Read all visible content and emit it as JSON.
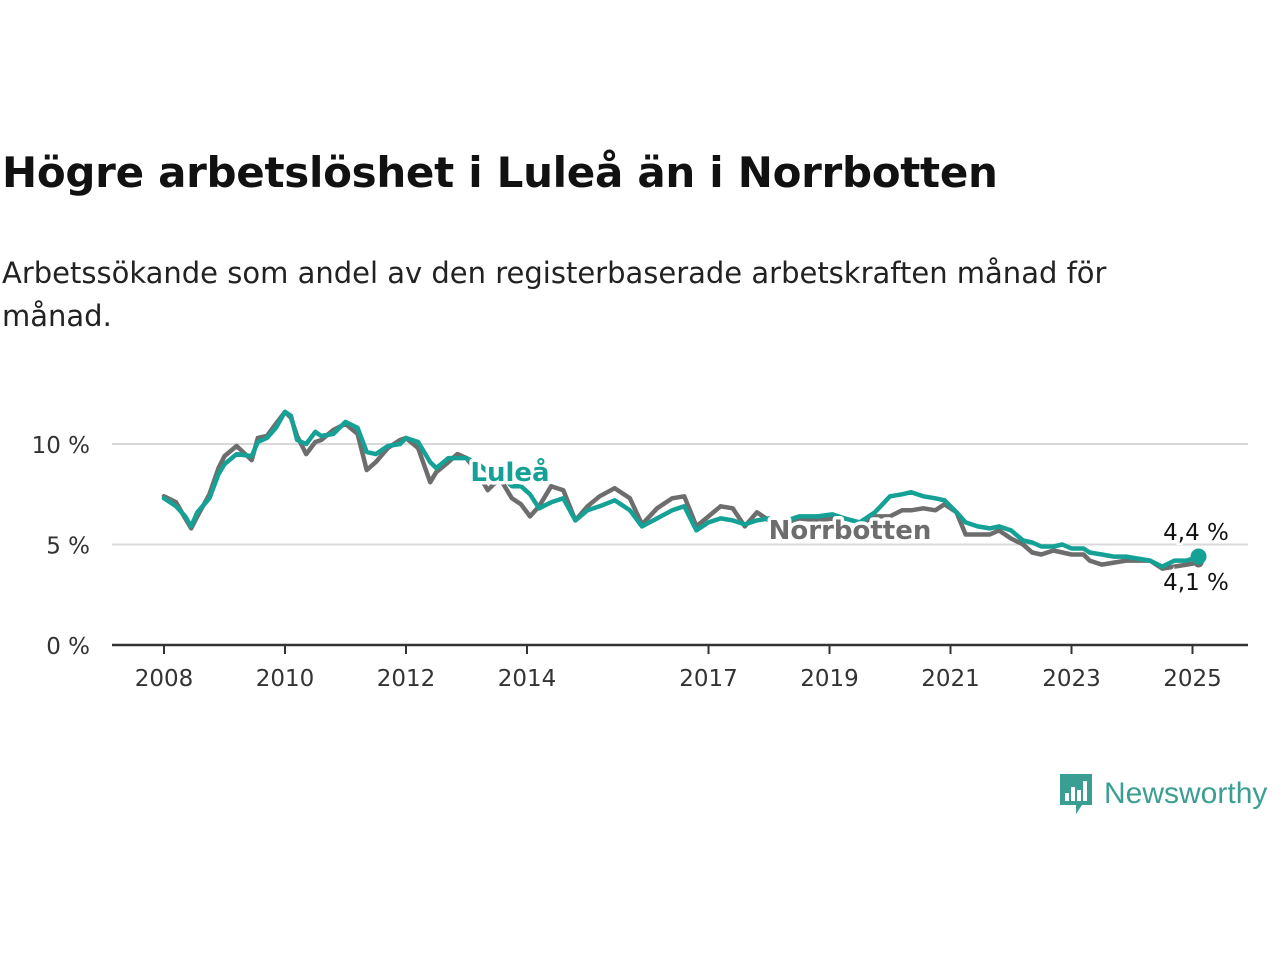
{
  "title": "Högre arbetslöshet i Luleå än i Norrbotten",
  "subtitle": "Arbetssökande som andel av den registerbaserade arbetskraften månad för månad.",
  "brand": {
    "name": "Newsworthy",
    "icon": "newsworthy-logo-icon",
    "color": "#3a9e92"
  },
  "chart_data": {
    "type": "line",
    "title": "Högre arbetslöshet i Luleå än i Norrbotten",
    "subtitle": "Arbetssökande som andel av den registerbaserade arbetskraften månad för månad.",
    "xlabel": "",
    "ylabel": "",
    "x_ticks": [
      "2008",
      "2010",
      "2012",
      "2014",
      "2017",
      "2019",
      "2021",
      "2023",
      "2025"
    ],
    "y_ticks": [
      "0 %",
      "5 %",
      "10 %"
    ],
    "ylim": [
      0,
      12
    ],
    "grid": true,
    "legend": "inline labels on lines",
    "series": [
      {
        "name": "Norrbotten",
        "color": "#6d6d6d",
        "end_label": "4,1 %",
        "x": [
          2008.0,
          2008.2,
          2008.35,
          2008.45,
          2008.55,
          2008.75,
          2008.9,
          2009.0,
          2009.2,
          2009.45,
          2009.55,
          2009.7,
          2009.85,
          2010.0,
          2010.1,
          2010.2,
          2010.35,
          2010.5,
          2010.6,
          2010.8,
          2011.0,
          2011.2,
          2011.35,
          2011.5,
          2011.7,
          2011.9,
          2012.0,
          2012.2,
          2012.4,
          2012.5,
          2012.7,
          2012.85,
          2013.0,
          2013.2,
          2013.35,
          2013.55,
          2013.75,
          2013.9,
          2014.05,
          2014.2,
          2014.4,
          2014.6,
          2014.8,
          2015.0,
          2015.2,
          2015.45,
          2015.7,
          2015.9,
          2016.15,
          2016.4,
          2016.6,
          2016.8,
          2017.0,
          2017.2,
          2017.4,
          2017.6,
          2017.8,
          2018.0,
          2018.2,
          2018.5,
          2018.8,
          2019.05,
          2019.25,
          2019.5,
          2019.75,
          2020.0,
          2020.2,
          2020.35,
          2020.55,
          2020.75,
          2020.9,
          2021.1,
          2021.25,
          2021.45,
          2021.65,
          2021.8,
          2022.0,
          2022.2,
          2022.35,
          2022.5,
          2022.7,
          2022.85,
          2023.0,
          2023.2,
          2023.3,
          2023.5,
          2023.7,
          2023.9,
          2024.1,
          2024.3,
          2024.5,
          2024.7,
          2024.9,
          2025.1
        ],
        "values": [
          7.4,
          7.1,
          6.3,
          5.8,
          6.4,
          7.5,
          8.8,
          9.4,
          9.9,
          9.2,
          10.3,
          10.4,
          11.0,
          11.6,
          11.3,
          10.4,
          9.5,
          10.1,
          10.2,
          10.7,
          11.0,
          10.5,
          8.7,
          9.1,
          9.8,
          10.2,
          10.3,
          9.8,
          8.1,
          8.6,
          9.1,
          9.5,
          9.3,
          8.5,
          7.7,
          8.3,
          7.3,
          7.0,
          6.4,
          6.9,
          7.9,
          7.7,
          6.2,
          6.9,
          7.4,
          7.8,
          7.3,
          6.0,
          6.8,
          7.3,
          7.4,
          5.9,
          6.4,
          6.9,
          6.8,
          5.9,
          6.6,
          6.2,
          6.0,
          6.3,
          6.2,
          6.3,
          5.8,
          5.9,
          6.4,
          6.4,
          6.7,
          6.7,
          6.8,
          6.7,
          7.0,
          6.6,
          5.5,
          5.5,
          5.5,
          5.7,
          5.3,
          5.0,
          4.6,
          4.5,
          4.7,
          4.6,
          4.5,
          4.5,
          4.2,
          4.0,
          4.1,
          4.2,
          4.2,
          4.2,
          3.8,
          3.9,
          4.0,
          4.1
        ]
      },
      {
        "name": "Luleå",
        "color": "#15a195",
        "end_label": "4,4 %",
        "x": [
          2008.0,
          2008.2,
          2008.35,
          2008.45,
          2008.55,
          2008.75,
          2008.9,
          2009.0,
          2009.2,
          2009.45,
          2009.55,
          2009.7,
          2009.85,
          2010.0,
          2010.1,
          2010.2,
          2010.35,
          2010.5,
          2010.6,
          2010.8,
          2011.0,
          2011.2,
          2011.35,
          2011.5,
          2011.7,
          2011.9,
          2012.0,
          2012.2,
          2012.4,
          2012.5,
          2012.7,
          2012.85,
          2013.0,
          2013.2,
          2013.35,
          2013.55,
          2013.75,
          2013.9,
          2014.05,
          2014.2,
          2014.4,
          2014.6,
          2014.8,
          2015.0,
          2015.2,
          2015.45,
          2015.7,
          2015.9,
          2016.15,
          2016.4,
          2016.6,
          2016.8,
          2017.0,
          2017.2,
          2017.4,
          2017.6,
          2017.8,
          2018.0,
          2018.2,
          2018.5,
          2018.8,
          2019.05,
          2019.25,
          2019.5,
          2019.75,
          2020.0,
          2020.2,
          2020.35,
          2020.55,
          2020.75,
          2020.9,
          2021.1,
          2021.25,
          2021.45,
          2021.65,
          2021.8,
          2022.0,
          2022.2,
          2022.35,
          2022.5,
          2022.7,
          2022.85,
          2023.0,
          2023.2,
          2023.3,
          2023.5,
          2023.7,
          2023.9,
          2024.1,
          2024.3,
          2024.5,
          2024.7,
          2024.9,
          2025.1
        ],
        "values": [
          7.3,
          6.9,
          6.4,
          5.9,
          6.6,
          7.3,
          8.5,
          9.0,
          9.5,
          9.4,
          10.1,
          10.3,
          10.8,
          11.6,
          11.4,
          10.2,
          10.0,
          10.6,
          10.4,
          10.5,
          11.1,
          10.8,
          9.6,
          9.5,
          9.9,
          10.0,
          10.3,
          10.1,
          9.1,
          8.8,
          9.3,
          9.3,
          9.3,
          9.0,
          8.6,
          8.5,
          7.9,
          7.9,
          7.5,
          6.8,
          7.1,
          7.3,
          6.2,
          6.7,
          6.9,
          7.2,
          6.7,
          5.9,
          6.3,
          6.7,
          6.9,
          5.7,
          6.1,
          6.3,
          6.2,
          6.0,
          6.2,
          6.3,
          6.1,
          6.4,
          6.4,
          6.5,
          6.3,
          6.1,
          6.6,
          7.4,
          7.5,
          7.6,
          7.4,
          7.3,
          7.2,
          6.6,
          6.1,
          5.9,
          5.8,
          5.9,
          5.7,
          5.2,
          5.1,
          4.9,
          4.9,
          5.0,
          4.8,
          4.8,
          4.6,
          4.5,
          4.4,
          4.4,
          4.3,
          4.2,
          3.9,
          4.2,
          4.2,
          4.4
        ]
      }
    ]
  }
}
